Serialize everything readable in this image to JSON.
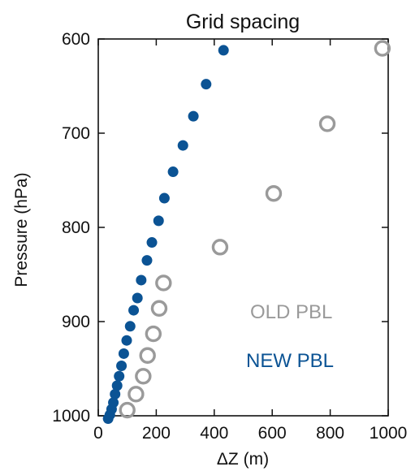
{
  "chart_data": {
    "type": "scatter",
    "title": "Grid spacing",
    "xlabel": "ΔZ (m)",
    "ylabel": "Pressure (hPa)",
    "xlim": [
      0,
      1000
    ],
    "ylim": [
      1000,
      600
    ],
    "y_inverted": true,
    "xticks": [
      0,
      200,
      400,
      600,
      800,
      1000
    ],
    "yticks": [
      600,
      700,
      800,
      900,
      1000
    ],
    "grid": false,
    "legend_position": "lower-right",
    "series": [
      {
        "name": "OLD PBL",
        "marker": "open-circle",
        "color": "#9a9a9a",
        "x": [
          980,
          790,
          605,
          420,
          225,
          210,
          190,
          170,
          155,
          130,
          100
        ],
        "y": [
          610,
          690,
          764,
          821,
          859,
          886,
          913,
          936,
          958,
          977,
          994
        ]
      },
      {
        "name": "NEW PBL",
        "marker": "filled-circle",
        "color": "#0b5394",
        "x": [
          432,
          372,
          328,
          292,
          258,
          228,
          208,
          185,
          168,
          148,
          135,
          122,
          110,
          98,
          88,
          80,
          72,
          65,
          58,
          52,
          46,
          40,
          34
        ],
        "y": [
          612,
          648,
          682,
          713,
          741,
          769,
          793,
          816,
          835,
          856,
          875,
          888,
          905,
          920,
          934,
          947,
          958,
          968,
          977,
          986,
          993,
          999,
          1003
        ]
      }
    ]
  }
}
